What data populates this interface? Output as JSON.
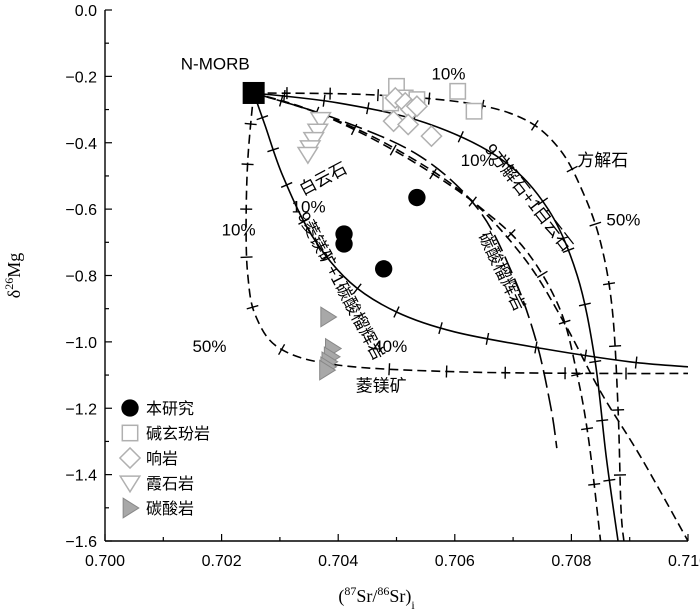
{
  "chart_data": {
    "type": "scatter",
    "xlabel": "(87Sr/86Sr)i",
    "ylabel": "δ26Mg",
    "xlim": [
      0.7,
      0.71
    ],
    "ylim": [
      -1.6,
      0.0
    ],
    "x_ticks": [
      "0.700",
      "0.702",
      "0.704",
      "0.706",
      "0.708",
      "0.710"
    ],
    "y_ticks": [
      "0.0",
      "−0.2",
      "−0.4",
      "−0.6",
      "−0.8",
      "−1.0",
      "−1.2",
      "−1.4",
      "−1.6"
    ],
    "x_tick_values": [
      0.7,
      0.702,
      0.704,
      0.706,
      0.708,
      0.71
    ],
    "y_tick_values": [
      0.0,
      -0.2,
      -0.4,
      -0.6,
      -0.8,
      -1.0,
      -1.2,
      -1.4,
      -1.6
    ],
    "grid": false,
    "legend_position": "bottom-left",
    "legend": [
      {
        "label": "本研究",
        "marker": "circle",
        "color": "#000000"
      },
      {
        "label": "碱玄玢岩",
        "marker": "square-open",
        "color": "#b0b0b0"
      },
      {
        "label": "响岩",
        "marker": "diamond-open",
        "color": "#b0b0b0"
      },
      {
        "label": "霞石岩",
        "marker": "triangle-down-open",
        "color": "#b0b0b0"
      },
      {
        "label": "碳酸岩",
        "marker": "triangle-right-filled",
        "color": "#a8a8a8"
      }
    ],
    "series": [
      {
        "name": "本研究",
        "marker": "circle",
        "x": [
          0.70535,
          0.7041,
          0.7041,
          0.70478
        ],
        "y": [
          -0.565,
          -0.675,
          -0.705,
          -0.78
        ]
      },
      {
        "name": "碱玄玢岩",
        "marker": "square-open",
        "x": [
          0.705,
          0.70515,
          0.7049,
          0.70605,
          0.70633,
          0.70535
        ],
        "y": [
          -0.23,
          -0.265,
          -0.28,
          -0.245,
          -0.305,
          -0.27
        ]
      },
      {
        "name": "响岩",
        "marker": "diamond-open",
        "x": [
          0.70498,
          0.70515,
          0.70525,
          0.70535,
          0.70495,
          0.7052,
          0.7056
        ],
        "y": [
          -0.265,
          -0.28,
          -0.3,
          -0.29,
          -0.335,
          -0.345,
          -0.38
        ]
      },
      {
        "name": "霞石岩",
        "marker": "triangle-down-open",
        "x": [
          0.7037,
          0.70365,
          0.70358,
          0.70352,
          0.70348
        ],
        "y": [
          -0.33,
          -0.365,
          -0.39,
          -0.415,
          -0.435
        ]
      },
      {
        "name": "碳酸岩",
        "marker": "triangle-right-filled",
        "x": [
          0.70382,
          0.7039,
          0.70388,
          0.70384,
          0.70382,
          0.7038
        ],
        "y": [
          -0.925,
          -1.02,
          -1.045,
          -1.06,
          -1.075,
          -1.085
        ]
      }
    ],
    "end_member": {
      "label": "N-MORB",
      "x": 0.70255,
      "y": -0.25
    },
    "mixing_curves": [
      {
        "label": "菱镁矿",
        "style": "dashed",
        "ticks": true,
        "points": [
          [
            0.70255,
            -0.25
          ],
          [
            0.70245,
            -0.45
          ],
          [
            0.70242,
            -0.65
          ],
          [
            0.70245,
            -0.8
          ],
          [
            0.70258,
            -0.92
          ],
          [
            0.703,
            -1.02
          ],
          [
            0.704,
            -1.07
          ],
          [
            0.706,
            -1.09
          ],
          [
            0.7085,
            -1.095
          ],
          [
            0.71,
            -1.095
          ]
        ]
      },
      {
        "label": "9菱镁矿+1碳酸榴辉岩",
        "style": "solid",
        "ticks": true,
        "points": [
          [
            0.70255,
            -0.25
          ],
          [
            0.70275,
            -0.35
          ],
          [
            0.70305,
            -0.5
          ],
          [
            0.70355,
            -0.68
          ],
          [
            0.7042,
            -0.82
          ],
          [
            0.705,
            -0.91
          ],
          [
            0.706,
            -0.97
          ],
          [
            0.7075,
            -1.02
          ],
          [
            0.709,
            -1.06
          ],
          [
            0.71,
            -1.075
          ]
        ]
      },
      {
        "label": "白云石",
        "style": "dashed",
        "ticks": true,
        "points": [
          [
            0.70255,
            -0.25
          ],
          [
            0.7035,
            -0.3
          ],
          [
            0.7045,
            -0.38
          ],
          [
            0.7055,
            -0.48
          ],
          [
            0.7064,
            -0.59
          ],
          [
            0.7072,
            -0.72
          ],
          [
            0.7078,
            -0.9
          ],
          [
            0.7081,
            -1.1
          ],
          [
            0.7083,
            -1.3
          ],
          [
            0.7085,
            -1.6
          ]
        ]
      },
      {
        "label": "9方解石+1白云石",
        "style": "solid",
        "ticks": true,
        "points": [
          [
            0.70255,
            -0.25
          ],
          [
            0.704,
            -0.28
          ],
          [
            0.7055,
            -0.34
          ],
          [
            0.7068,
            -0.45
          ],
          [
            0.7076,
            -0.6
          ],
          [
            0.7081,
            -0.8
          ],
          [
            0.7084,
            -1.05
          ],
          [
            0.7086,
            -1.35
          ],
          [
            0.7088,
            -1.6
          ]
        ]
      },
      {
        "label": "方解石",
        "style": "dashed",
        "ticks": true,
        "points": [
          [
            0.70255,
            -0.25
          ],
          [
            0.7045,
            -0.255
          ],
          [
            0.7062,
            -0.28
          ],
          [
            0.7072,
            -0.33
          ],
          [
            0.7078,
            -0.42
          ],
          [
            0.7082,
            -0.55
          ],
          [
            0.7085,
            -0.7
          ],
          [
            0.7087,
            -0.9
          ],
          [
            0.7088,
            -1.2
          ],
          [
            0.70885,
            -1.5
          ],
          [
            0.7089,
            -1.6
          ]
        ]
      },
      {
        "label": "碳酸榴辉岩",
        "style": "dashed",
        "ticks": false,
        "points": [
          [
            0.70255,
            -0.25
          ],
          [
            0.7038,
            -0.32
          ],
          [
            0.705,
            -0.42
          ],
          [
            0.7062,
            -0.56
          ],
          [
            0.7072,
            -0.75
          ],
          [
            0.7079,
            -0.95
          ],
          [
            0.7085,
            -1.15
          ],
          [
            0.7092,
            -1.35
          ],
          [
            0.71,
            -1.6
          ]
        ]
      },
      {
        "label": "",
        "style": "longdash",
        "ticks": false,
        "points": [
          [
            0.70255,
            -0.25
          ],
          [
            0.704,
            -0.33
          ],
          [
            0.7054,
            -0.44
          ],
          [
            0.7064,
            -0.6
          ],
          [
            0.707,
            -0.8
          ],
          [
            0.7074,
            -1.0
          ],
          [
            0.70765,
            -1.2
          ],
          [
            0.70775,
            -1.32
          ]
        ]
      }
    ],
    "annotations": [
      {
        "text": "N-MORB",
        "x": 0.7013,
        "y": -0.18
      },
      {
        "text": "10%",
        "x": 0.7056,
        "y": -0.21
      },
      {
        "text": "方解石",
        "x": 0.7081,
        "y": -0.47
      },
      {
        "text": "50%",
        "x": 0.7086,
        "y": -0.65
      },
      {
        "text": "10%",
        "x": 0.7061,
        "y": -0.47
      },
      {
        "text": "白云石",
        "x": 0.7034,
        "y": -0.56
      },
      {
        "text": "10%",
        "x": 0.7032,
        "y": -0.61
      },
      {
        "text": "10%",
        "x": 0.702,
        "y": -0.68
      },
      {
        "text": "50%",
        "x": 0.7015,
        "y": -1.03
      },
      {
        "text": "40%",
        "x": 0.7046,
        "y": -1.03
      },
      {
        "text": "菱镁矿",
        "x": 0.7043,
        "y": -1.15
      },
      {
        "text": "9方解石+1白云石",
        "x": 0.7065,
        "y": -0.42
      },
      {
        "text": "9菱镁矿+1碳酸榴辉岩",
        "x": 0.7033,
        "y": -0.62
      },
      {
        "text": "碳酸榴辉岩",
        "x": 0.7064,
        "y": -0.68
      }
    ]
  }
}
